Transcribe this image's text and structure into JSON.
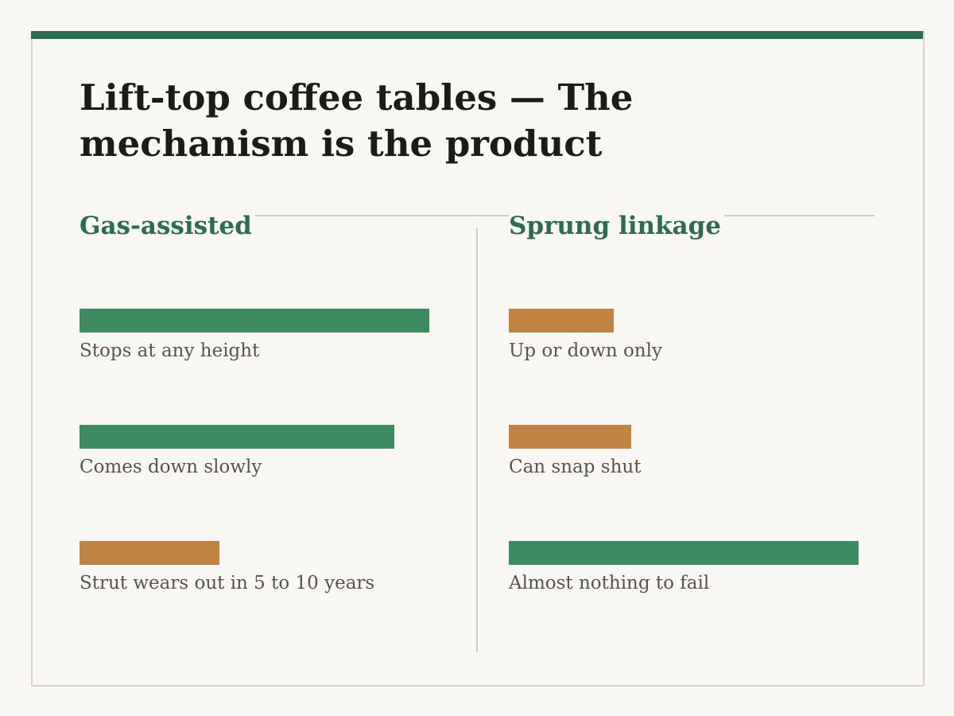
{
  "title": "Lift-top coffee tables — The mechanism is the product",
  "colors": {
    "accent": "#2f6b53",
    "positive": "#3e8b62",
    "negative": "#bf8442",
    "background": "#f8f7f3",
    "border": "#d8d1c6"
  },
  "columns": [
    {
      "heading": "Gas-assisted",
      "items": [
        {
          "label": "Stops at any height",
          "score": 1.0,
          "tone": "positive"
        },
        {
          "label": "Comes down slowly",
          "score": 0.9,
          "tone": "positive"
        },
        {
          "label": "Strut wears out in 5 to 10 years",
          "score": 0.4,
          "tone": "negative"
        }
      ]
    },
    {
      "heading": "Sprung linkage",
      "items": [
        {
          "label": "Up or down only",
          "score": 0.3,
          "tone": "negative"
        },
        {
          "label": "Can snap shut",
          "score": 0.35,
          "tone": "negative"
        },
        {
          "label": "Almost nothing to fail",
          "score": 1.0,
          "tone": "positive"
        }
      ]
    }
  ]
}
